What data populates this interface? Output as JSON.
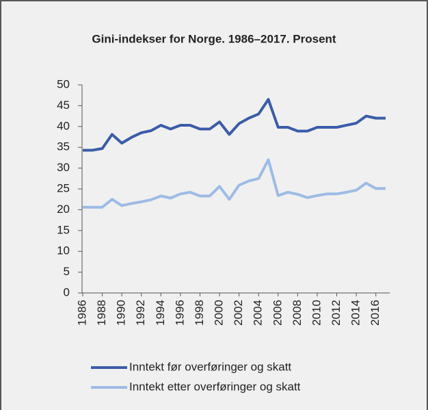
{
  "chart_data": {
    "type": "line",
    "title": "Gini-indekser for Norge. 1986–2017. Prosent",
    "x": [
      1986,
      1987,
      1988,
      1989,
      1990,
      1991,
      1992,
      1993,
      1994,
      1995,
      1996,
      1997,
      1998,
      1999,
      2000,
      2001,
      2002,
      2003,
      2004,
      2005,
      2006,
      2007,
      2008,
      2009,
      2010,
      2011,
      2012,
      2013,
      2014,
      2015,
      2016,
      2017
    ],
    "xlim": [
      1986,
      2017
    ],
    "xticks": [
      1986,
      1988,
      1990,
      1992,
      1994,
      1996,
      1998,
      2000,
      2002,
      2004,
      2006,
      2008,
      2010,
      2012,
      2014,
      2016
    ],
    "ylim": [
      0,
      50
    ],
    "yticks": [
      0,
      5,
      10,
      15,
      20,
      25,
      30,
      35,
      40,
      45,
      50
    ],
    "legend": "bottom",
    "series": [
      {
        "name": "Inntekt før overføringer og skatt",
        "color": "#3b5ca8",
        "values": [
          34.3,
          34.3,
          34.7,
          38.1,
          36.0,
          37.4,
          38.5,
          39.0,
          40.3,
          39.4,
          40.3,
          40.3,
          39.4,
          39.4,
          41.1,
          38.1,
          40.7,
          42.0,
          43.0,
          46.5,
          39.8,
          39.8,
          38.9,
          38.9,
          39.8,
          39.8,
          39.8,
          40.3,
          40.8,
          42.5,
          42.0,
          42.0
        ]
      },
      {
        "name": "Inntekt etter overføringer og skatt",
        "color": "#9dbbe4",
        "values": [
          20.6,
          20.6,
          20.6,
          22.5,
          21.0,
          21.5,
          21.9,
          22.4,
          23.3,
          22.8,
          23.8,
          24.2,
          23.3,
          23.3,
          25.6,
          22.5,
          25.9,
          26.9,
          27.5,
          32.0,
          23.4,
          24.2,
          23.7,
          22.9,
          23.4,
          23.8,
          23.8,
          24.2,
          24.7,
          26.4,
          25.1,
          25.1
        ]
      }
    ]
  }
}
